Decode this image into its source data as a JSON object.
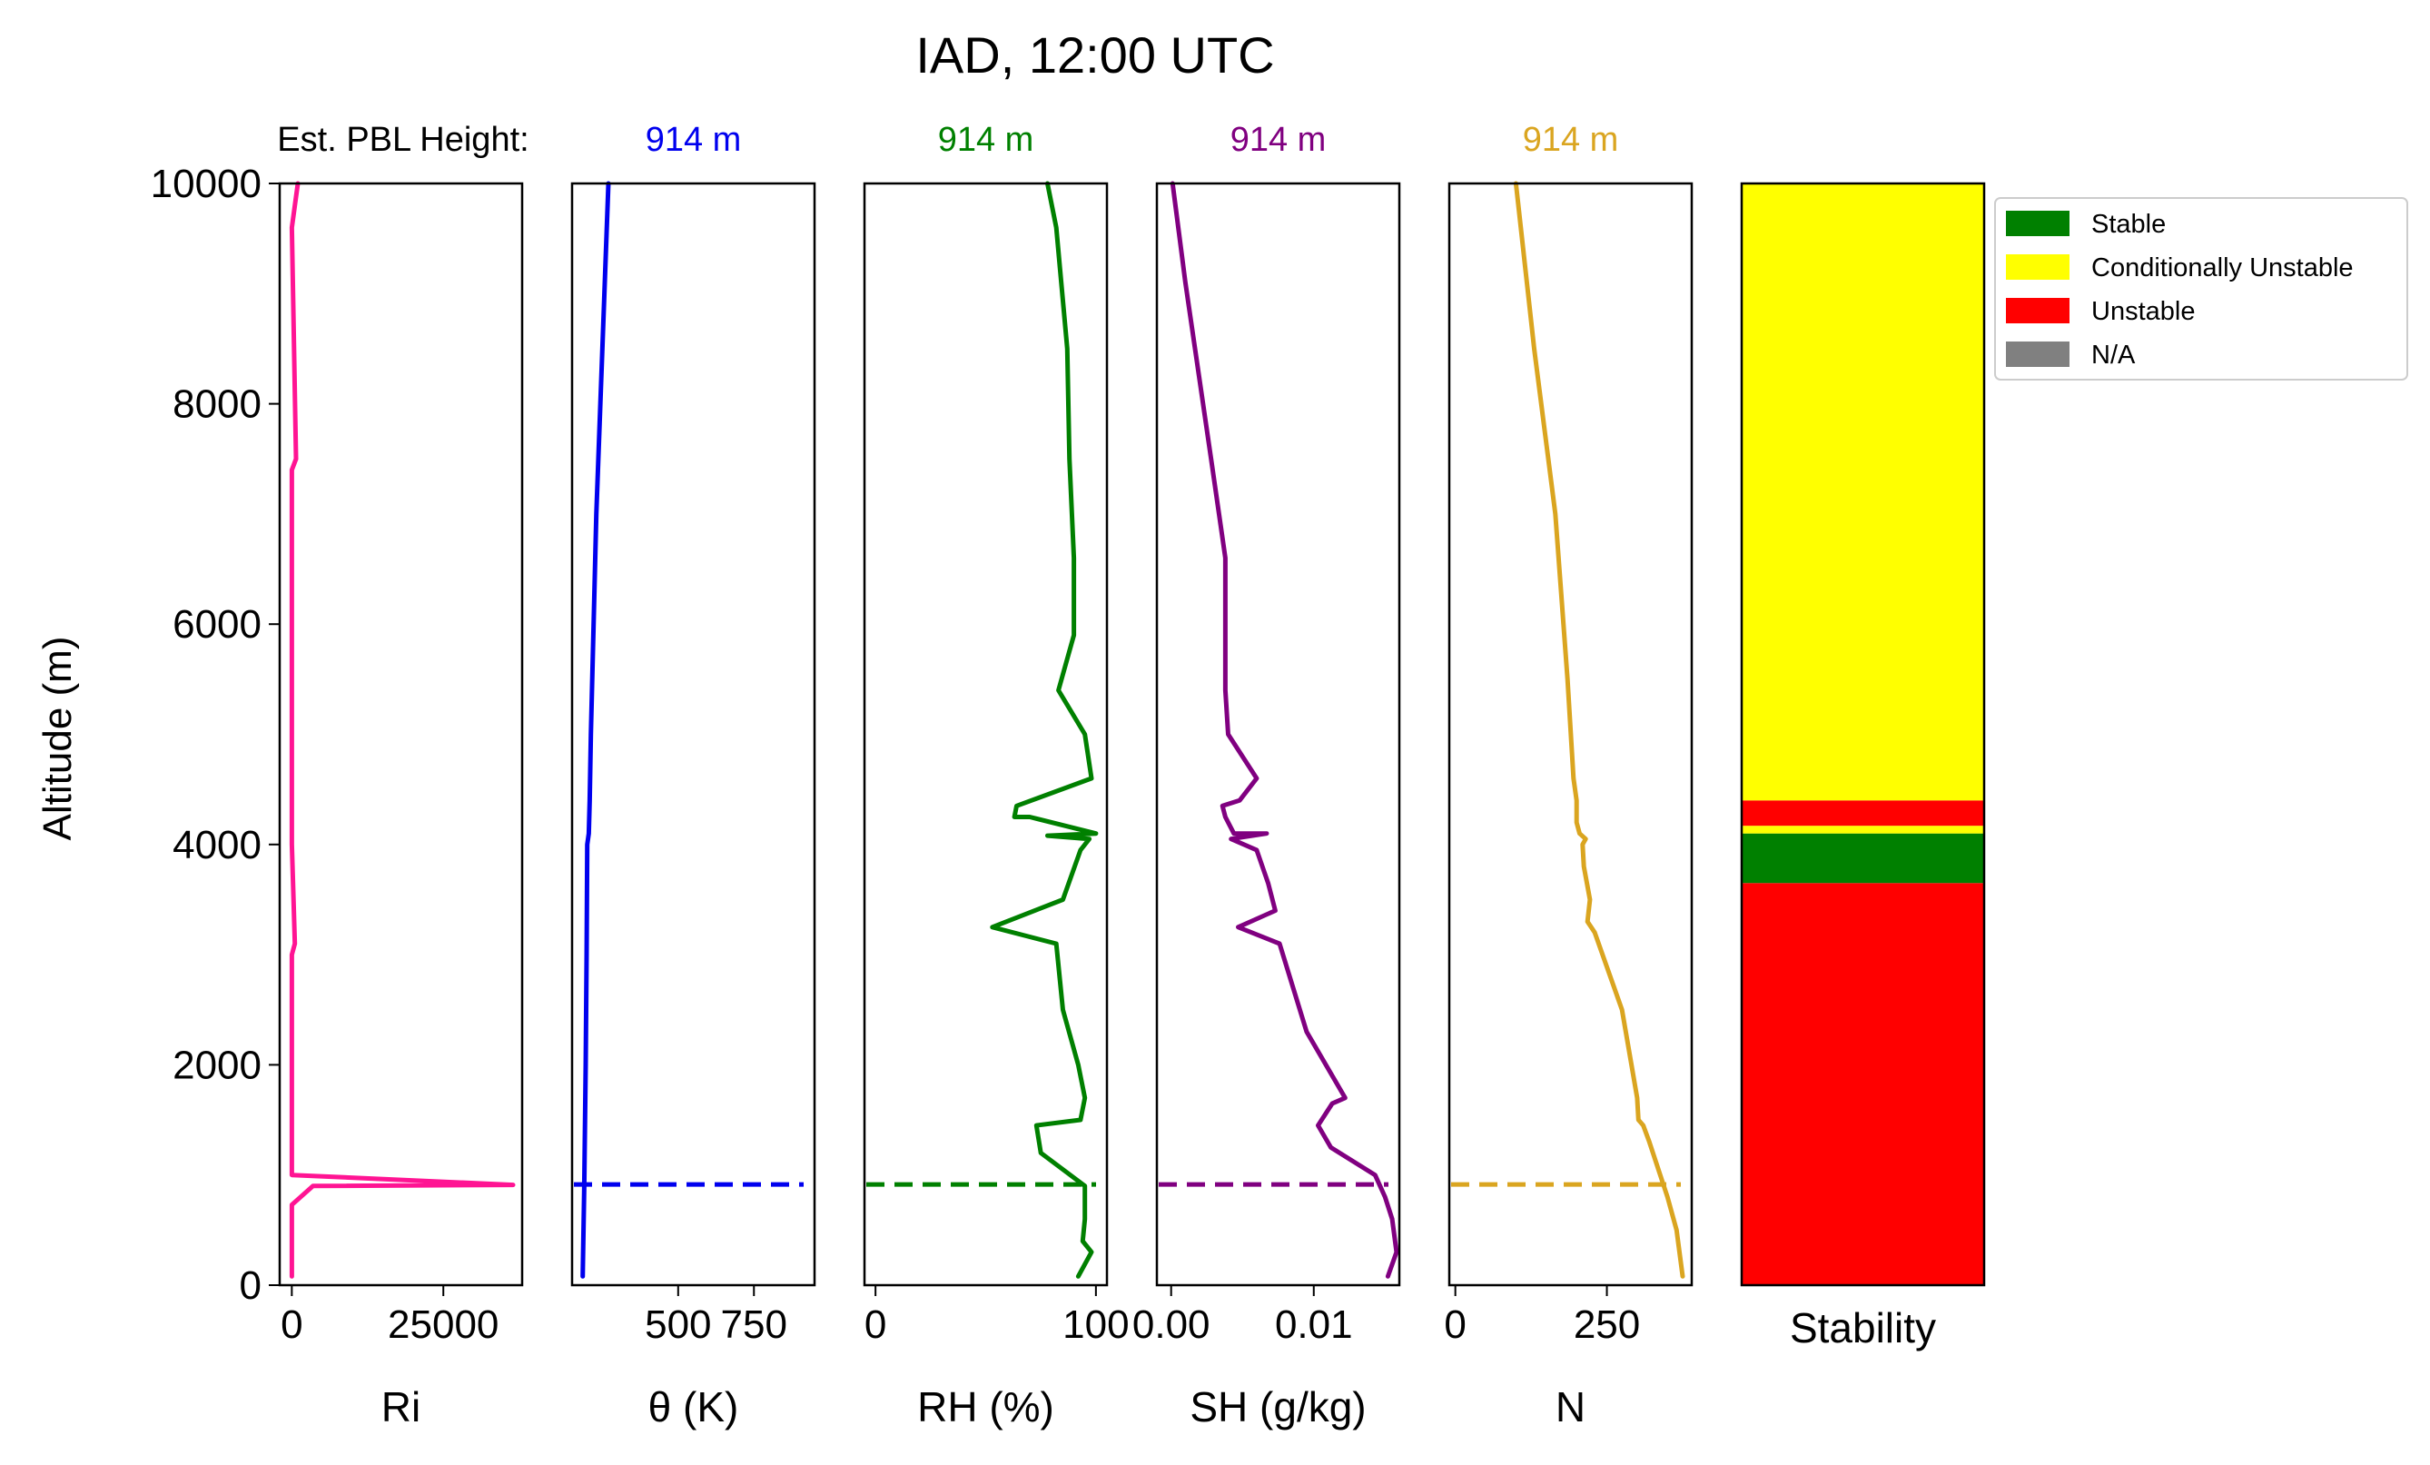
{
  "figure": {
    "title": "IAD, 12:00 UTC",
    "pbl_label": "Est. PBL Height:",
    "ylabel": "Altitude (m)",
    "y_ticks": [
      "0",
      "2000",
      "4000",
      "6000",
      "8000",
      "10000"
    ]
  },
  "chart_data": [
    {
      "type": "line",
      "id": "ri",
      "xlabel": "Ri",
      "pbl_text": "",
      "color": "#ff1493",
      "xlim": [
        -2000,
        38000
      ],
      "ylim": [
        0,
        10000
      ],
      "x_ticks": [
        {
          "value": 0,
          "label": "0"
        },
        {
          "value": 25000,
          "label": "25000"
        }
      ],
      "pbl_height": null,
      "series": [
        {
          "x": [
            0,
            0,
            0,
            3500,
            36500,
            0,
            0,
            0,
            0,
            500,
            0,
            0,
            0,
            700,
            0,
            1000
          ],
          "y": [
            80,
            400,
            730,
            900,
            910,
            1000,
            1200,
            2000,
            3000,
            3100,
            4000,
            6000,
            7400,
            7500,
            9600,
            10000
          ]
        }
      ]
    },
    {
      "type": "line",
      "id": "theta",
      "xlabel": "θ (K)",
      "pbl_text": "914 m",
      "color": "#0000ee",
      "xlim": [
        150,
        950
      ],
      "ylim": [
        0,
        10000
      ],
      "x_ticks": [
        {
          "value": 500,
          "label": "500"
        },
        {
          "value": 750,
          "label": "750"
        }
      ],
      "pbl_height": 914,
      "series": [
        {
          "x": [
            185,
            190,
            195,
            198,
            200,
            205,
            208,
            212,
            230,
            270
          ],
          "y": [
            80,
            900,
            2000,
            3000,
            4000,
            4100,
            4400,
            5000,
            7000,
            10000
          ]
        }
      ]
    },
    {
      "type": "line",
      "id": "rh",
      "xlabel": "RH (%)",
      "pbl_text": "914 m",
      "color": "#008000",
      "xlim": [
        -5,
        105
      ],
      "ylim": [
        0,
        10000
      ],
      "x_ticks": [
        {
          "value": 0,
          "label": "0"
        },
        {
          "value": 100,
          "label": "100"
        }
      ],
      "pbl_height": 914,
      "series": [
        {
          "x": [
            92,
            98,
            94,
            95,
            95,
            75,
            73,
            93,
            95,
            92,
            85,
            82,
            53,
            85,
            93,
            97,
            78,
            100,
            70,
            63,
            64,
            98,
            95,
            83,
            90,
            90,
            88,
            87,
            82,
            78
          ],
          "y": [
            80,
            300,
            400,
            600,
            900,
            1200,
            1450,
            1500,
            1700,
            2000,
            2500,
            3100,
            3250,
            3500,
            3950,
            4050,
            4080,
            4100,
            4250,
            4250,
            4350,
            4600,
            5000,
            5400,
            5900,
            6600,
            7500,
            8500,
            9600,
            10000
          ]
        }
      ]
    },
    {
      "type": "line",
      "id": "sh",
      "xlabel": "SH (g/kg)",
      "pbl_text": "914 m",
      "color": "#800080",
      "xlim": [
        -0.001,
        0.016
      ],
      "ylim": [
        0,
        10000
      ],
      "x_ticks": [
        {
          "value": 0.0,
          "label": "0.00"
        },
        {
          "value": 0.01,
          "label": "0.01"
        }
      ],
      "pbl_height": 914,
      "series": [
        {
          "x": [
            0.0152,
            0.0158,
            0.0155,
            0.015,
            0.0143,
            0.0112,
            0.0103,
            0.0113,
            0.0122,
            0.0095,
            0.0076,
            0.0047,
            0.0073,
            0.0068,
            0.006,
            0.0042,
            0.0067,
            0.0044,
            0.0038,
            0.0036,
            0.0048,
            0.006,
            0.004,
            0.0038,
            0.0038,
            0.0028,
            0.001,
            0.0001
          ],
          "y": [
            80,
            300,
            600,
            800,
            1000,
            1250,
            1450,
            1650,
            1700,
            2300,
            3100,
            3250,
            3400,
            3650,
            3950,
            4050,
            4100,
            4100,
            4250,
            4350,
            4400,
            4600,
            5000,
            5400,
            6600,
            7500,
            9100,
            10000
          ]
        }
      ]
    },
    {
      "type": "line",
      "id": "n",
      "xlabel": "N",
      "pbl_text": "914 m",
      "color": "#daa520",
      "xlim": [
        -10,
        390
      ],
      "ylim": [
        0,
        10000
      ],
      "x_ticks": [
        {
          "value": 0,
          "label": "0"
        },
        {
          "value": 250,
          "label": "250"
        }
      ],
      "pbl_height": 914,
      "series": [
        {
          "x": [
            375,
            365,
            350,
            320,
            310,
            302,
            300,
            275,
            230,
            218,
            222,
            212,
            210,
            215,
            205,
            200,
            200,
            195,
            185,
            165,
            130,
            100
          ],
          "y": [
            80,
            500,
            800,
            1300,
            1450,
            1500,
            1700,
            2500,
            3200,
            3300,
            3500,
            3800,
            4000,
            4050,
            4100,
            4200,
            4400,
            4600,
            5500,
            7000,
            8500,
            10000
          ]
        }
      ]
    },
    {
      "type": "area",
      "id": "stability",
      "xlabel": "Stability",
      "ylim": [
        0,
        10000
      ],
      "legend_position": "outside upper right",
      "categories": [
        {
          "name": "Stable",
          "color": "#008000"
        },
        {
          "name": "Conditionally Unstable",
          "color": "#ffff00"
        },
        {
          "name": "Unstable",
          "color": "#ff0000"
        },
        {
          "name": "N/A",
          "color": "#808080"
        }
      ],
      "layers": [
        {
          "from": 0,
          "to": 3650,
          "category": "Unstable"
        },
        {
          "from": 3650,
          "to": 4100,
          "category": "Stable"
        },
        {
          "from": 4100,
          "to": 4170,
          "category": "Conditionally Unstable"
        },
        {
          "from": 4170,
          "to": 4400,
          "category": "Unstable"
        },
        {
          "from": 4400,
          "to": 10000,
          "category": "Conditionally Unstable"
        }
      ]
    }
  ]
}
